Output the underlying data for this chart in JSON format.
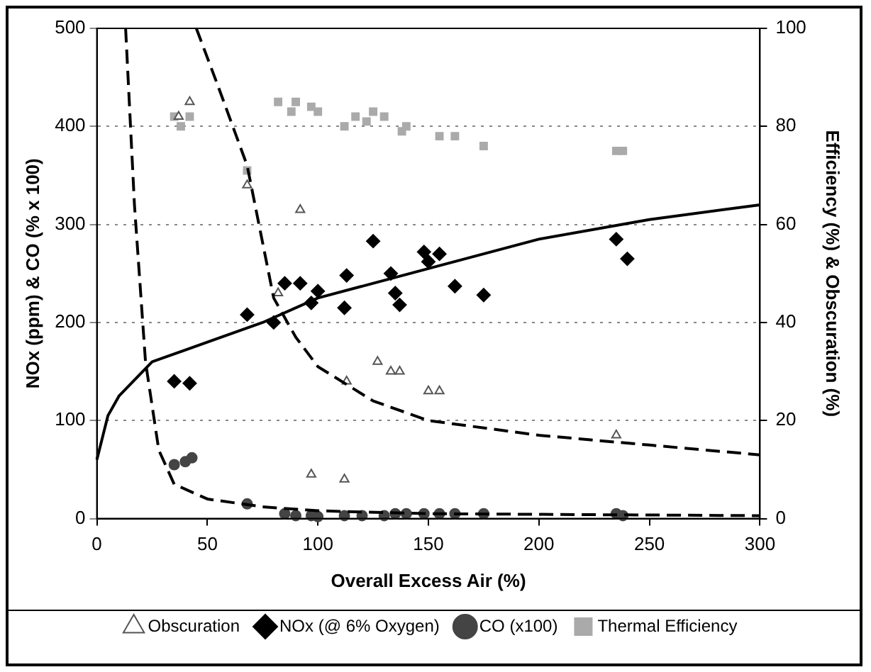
{
  "chart_data": {
    "type": "scatter",
    "xlabel": "Overall Excess Air (%)",
    "ylabel": "NOx (ppm) & CO (% x 100)",
    "y2label": "Efficiency (%) & Obscuration (%)",
    "xlim": [
      0,
      300
    ],
    "xticks": [
      0,
      50,
      100,
      150,
      200,
      250,
      300
    ],
    "ylim": [
      0,
      500
    ],
    "yticks": [
      0,
      100,
      200,
      300,
      400,
      500
    ],
    "y2lim": [
      0,
      100
    ],
    "y2ticks": [
      0,
      20,
      40,
      60,
      80,
      100
    ],
    "grid": "y",
    "legend": "bottom",
    "series": [
      {
        "name": "NOx (@ 6% Oxygen)",
        "color": "#000000",
        "marker": "diamond",
        "x": [
          35,
          42,
          68,
          80,
          85,
          92,
          97,
          100,
          112,
          113,
          125,
          133,
          135,
          137,
          148,
          150,
          155,
          162,
          175,
          235,
          240
        ],
        "values": [
          140,
          138,
          208,
          200,
          240,
          240,
          220,
          232,
          215,
          248,
          283,
          250,
          230,
          218,
          272,
          262,
          270,
          237,
          228,
          285,
          265
        ]
      },
      {
        "name": "CO (x100)",
        "color": "#444444",
        "marker": "circle",
        "x": [
          35,
          40,
          43,
          68,
          85,
          90,
          97,
          100,
          112,
          120,
          130,
          135,
          140,
          148,
          155,
          162,
          175,
          235,
          238
        ],
        "values": [
          55,
          58,
          62,
          15,
          5,
          3,
          3,
          2,
          3,
          3,
          3,
          5,
          5,
          5,
          5,
          5,
          5,
          5,
          3
        ]
      },
      {
        "name": "Thermal Efficiency",
        "color": "#aaaaaa",
        "marker": "square",
        "axis": "y2",
        "x": [
          35,
          38,
          42,
          68,
          82,
          88,
          90,
          97,
          100,
          112,
          117,
          122,
          125,
          130,
          138,
          140,
          155,
          162,
          175,
          235,
          238
        ],
        "values": [
          82,
          80,
          82,
          71,
          85,
          83,
          85,
          84,
          83,
          80,
          82,
          81,
          83,
          82,
          79,
          80,
          78,
          78,
          76,
          75,
          75
        ]
      },
      {
        "name": "Obscuration",
        "color": "#555555",
        "marker": "triangle",
        "axis": "y2",
        "x": [
          37,
          42,
          68,
          82,
          92,
          97,
          112,
          113,
          127,
          133,
          137,
          150,
          155,
          235
        ],
        "values": [
          82,
          85,
          68,
          46,
          63,
          9,
          8,
          28,
          32,
          30,
          30,
          26,
          26,
          17
        ]
      },
      {
        "type": "line",
        "color": "#000000",
        "line_style": "solid",
        "marker": "none",
        "x": [
          0,
          5,
          10,
          25,
          50,
          75,
          100,
          150,
          200,
          250,
          300
        ],
        "values": [
          60,
          105,
          125,
          160,
          180,
          200,
          225,
          255,
          285,
          305,
          320
        ]
      },
      {
        "type": "line",
        "color": "#000000",
        "line_style": "dashed",
        "marker": "none",
        "x": [
          13,
          17,
          22,
          28,
          35,
          50,
          75,
          100,
          150,
          300
        ],
        "values": [
          500,
          320,
          160,
          70,
          35,
          20,
          12,
          8,
          5,
          3
        ]
      },
      {
        "type": "line",
        "color": "#000000",
        "line_style": "dashed",
        "marker": "none",
        "axis": "y2",
        "x": [
          45,
          55,
          68,
          80,
          90,
          100,
          125,
          150,
          200,
          250,
          300
        ],
        "values": [
          100,
          88,
          72,
          45,
          37,
          31,
          24,
          20,
          17,
          15,
          13
        ]
      }
    ]
  }
}
